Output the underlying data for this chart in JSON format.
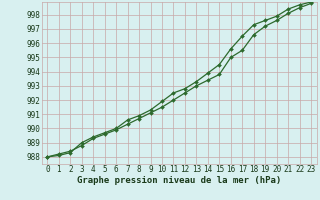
{
  "title": "Graphe pression niveau de la mer (hPa)",
  "x_hours": [
    0,
    1,
    2,
    3,
    4,
    5,
    6,
    7,
    8,
    9,
    10,
    11,
    12,
    13,
    14,
    15,
    16,
    17,
    18,
    19,
    20,
    21,
    22,
    23
  ],
  "line1_y": [
    988.0,
    988.2,
    988.4,
    988.8,
    989.3,
    989.6,
    989.9,
    990.3,
    990.7,
    991.1,
    991.5,
    992.0,
    992.5,
    993.0,
    993.4,
    993.8,
    995.0,
    995.5,
    996.6,
    997.2,
    997.6,
    998.1,
    998.5,
    998.8
  ],
  "line2_y": [
    988.0,
    988.1,
    988.3,
    989.0,
    989.4,
    989.7,
    990.0,
    990.6,
    990.9,
    991.3,
    991.9,
    992.5,
    992.8,
    993.3,
    993.9,
    994.5,
    995.6,
    996.5,
    997.3,
    997.6,
    997.9,
    998.4,
    998.7,
    998.9
  ],
  "line_color": "#2d6a2d",
  "bg_color": "#d8f0f0",
  "grid_major_color": "#c8a8a8",
  "grid_minor_color": "#e0c8c8",
  "ylim": [
    987.5,
    998.9
  ],
  "yticks": [
    988,
    989,
    990,
    991,
    992,
    993,
    994,
    995,
    996,
    997,
    998
  ],
  "tick_color": "#1a3a1a",
  "title_fontsize": 6.5,
  "tick_fontsize": 5.5
}
